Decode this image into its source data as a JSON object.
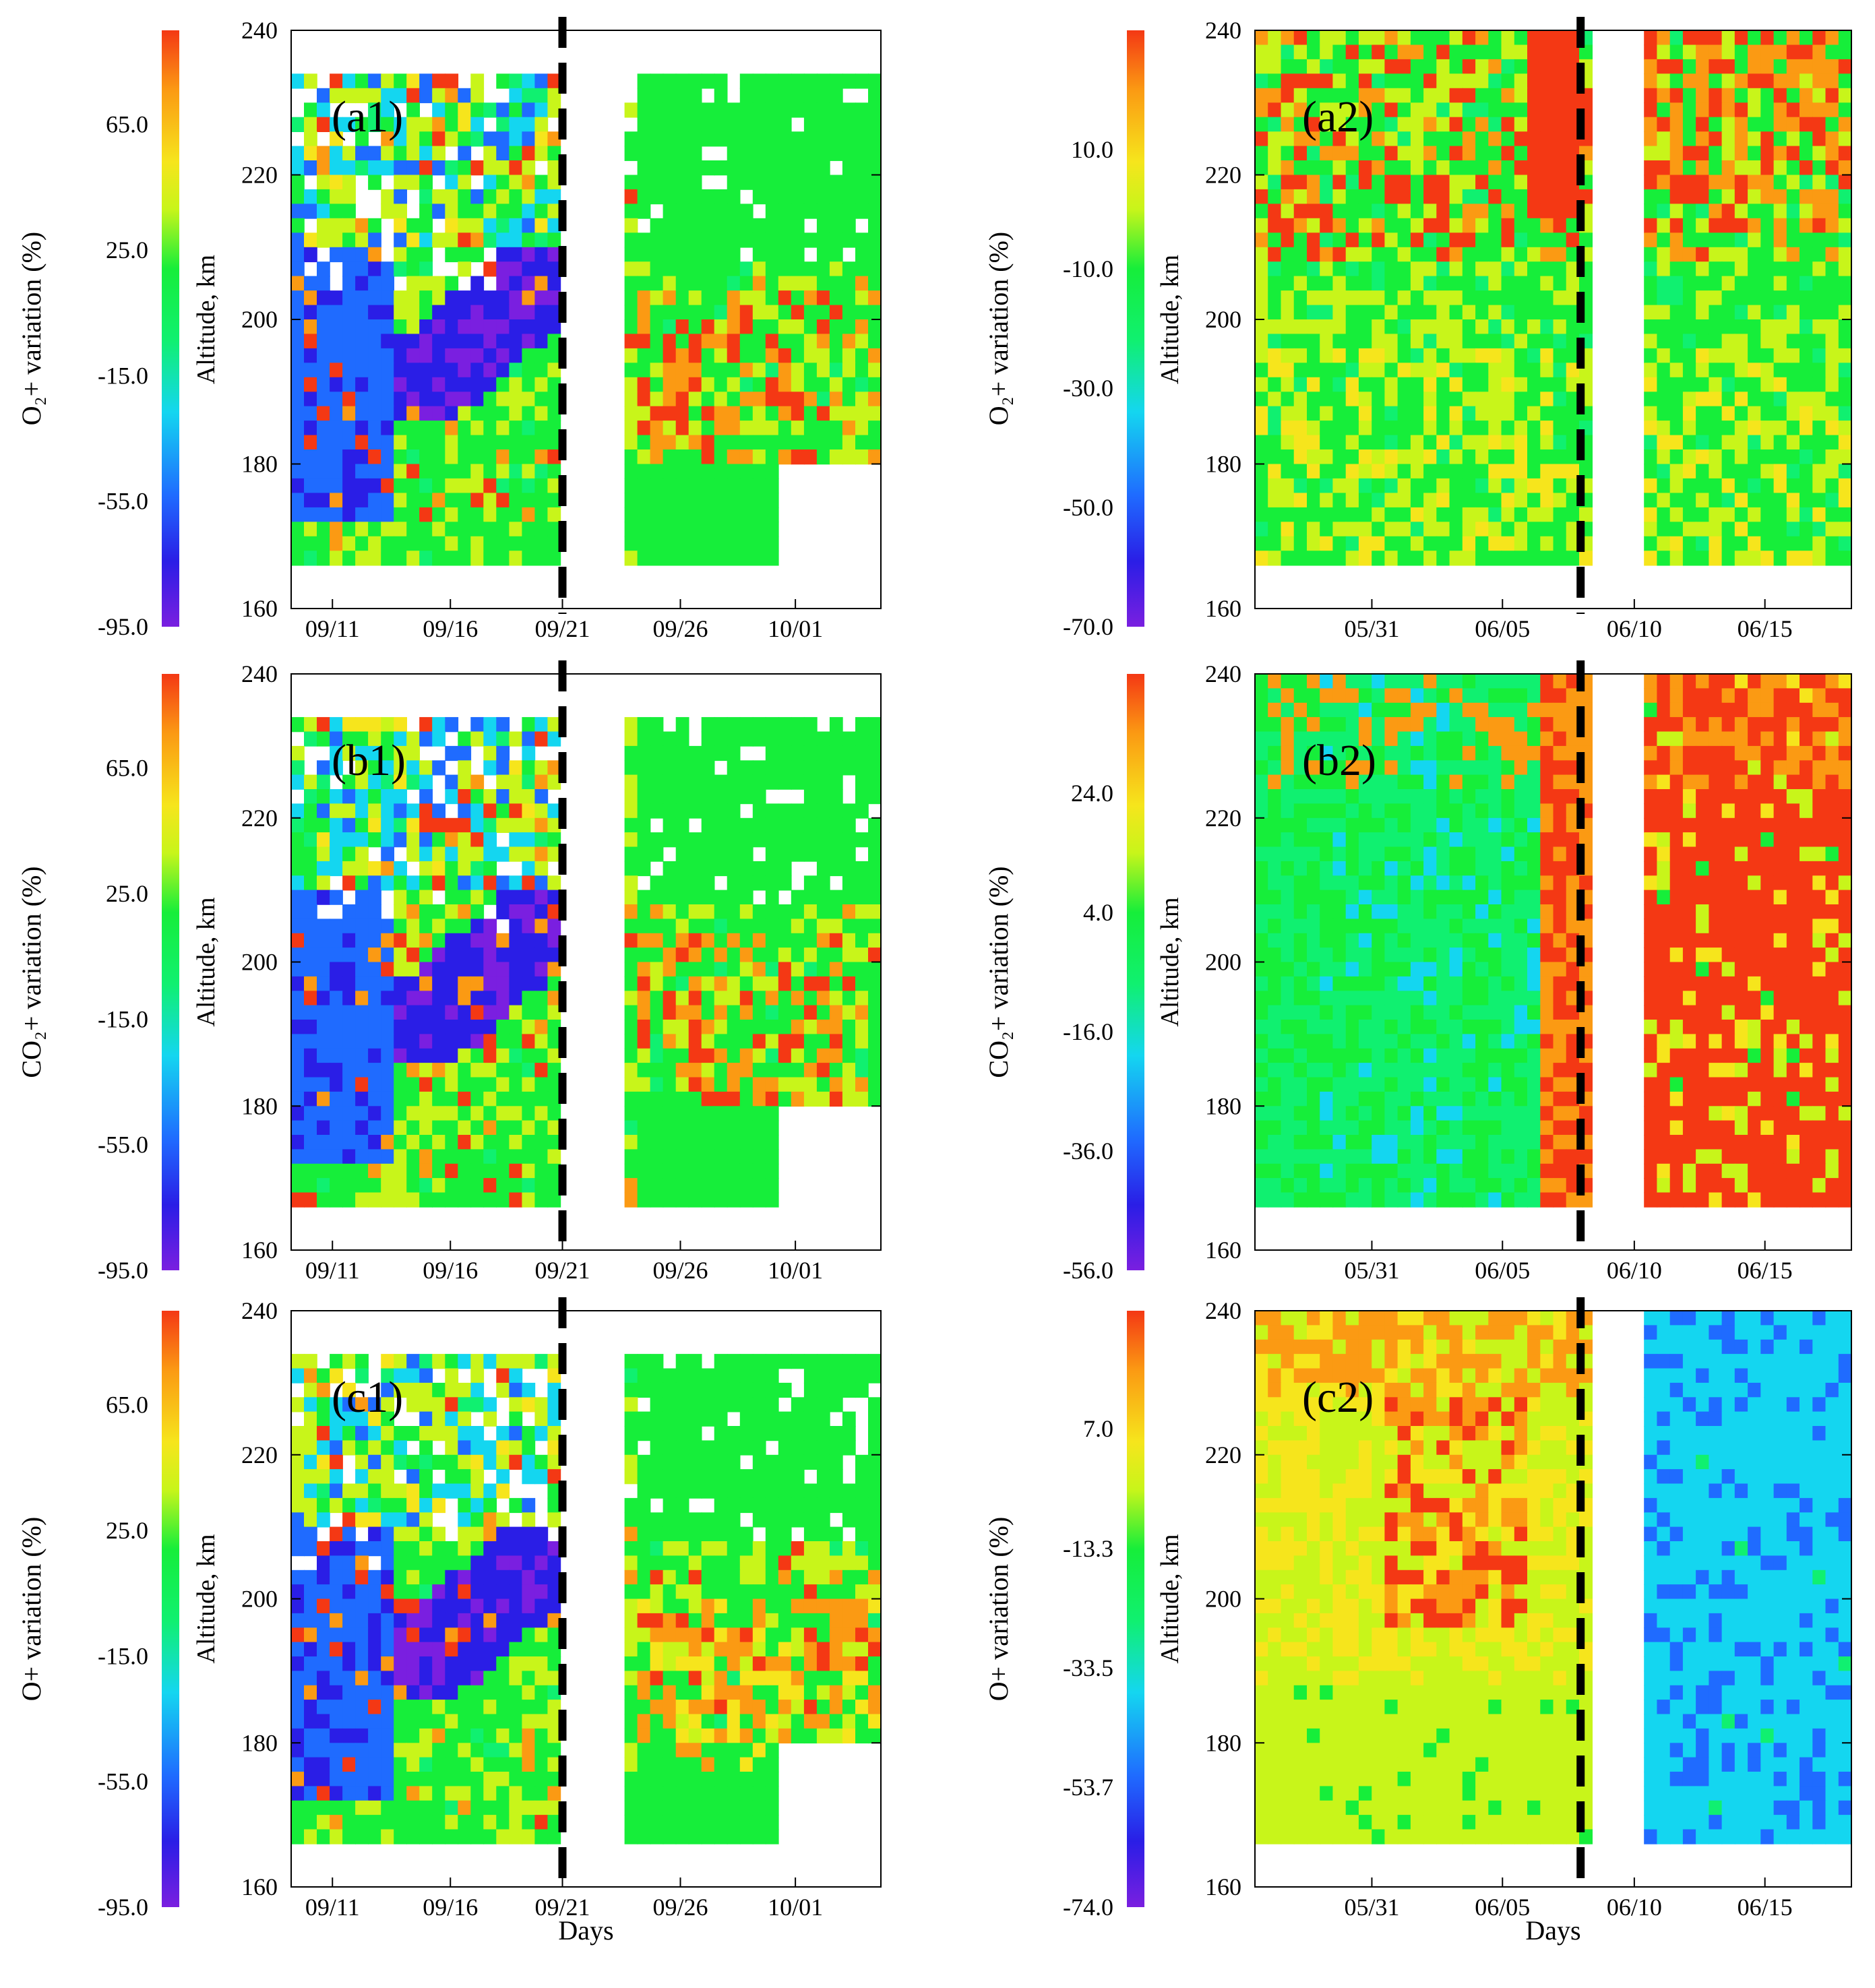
{
  "figure": {
    "description_free": true,
    "colors": {
      "scale": [
        "#7a1fe0",
        "#2a1ee6",
        "#1f6bff",
        "#14d6f0",
        "#10f070",
        "#16ee3a",
        "#c8f51a",
        "#f6e51c",
        "#fb9a13",
        "#f43814"
      ],
      "background": "#ffffff",
      "dashed_line": "#000000"
    }
  },
  "chart_data": [
    {
      "id": "a1",
      "type": "heatmap",
      "panel_label": "(a1)",
      "colorbar_label": "O₂+ variation (%)",
      "colorbar_ticks": [
        "65.0",
        "25.0",
        "-15.0",
        "-55.0",
        "-95.0"
      ],
      "colorbar_range": [
        -95.0,
        95.0
      ],
      "ylabel": "Altitude, km",
      "ylim": [
        160,
        240
      ],
      "yticks": [
        "240",
        "220",
        "200",
        "180",
        "160"
      ],
      "xticks": [
        "09/11",
        "09/16",
        "09/21",
        "09/26",
        "10/01"
      ],
      "dashed_line_at": "09/21",
      "xlabel": ""
    },
    {
      "id": "a2",
      "type": "heatmap",
      "panel_label": "(a2)",
      "colorbar_label": "O₂+ variation (%)",
      "colorbar_ticks": [
        "10.0",
        "-10.0",
        "-30.0",
        "-50.0",
        "-70.0"
      ],
      "colorbar_range": [
        -70.0,
        30.0
      ],
      "ylabel": "Altitude, km",
      "ylim": [
        160,
        240
      ],
      "yticks": [
        "240",
        "220",
        "200",
        "180",
        "160"
      ],
      "xticks": [
        "05/31",
        "06/05",
        "06/10",
        "06/15"
      ],
      "dashed_line_at": "06/08",
      "xlabel": ""
    },
    {
      "id": "b1",
      "type": "heatmap",
      "panel_label": "(b1)",
      "colorbar_label": "CO₂+ variation (%)",
      "colorbar_ticks": [
        "65.0",
        "25.0",
        "-15.0",
        "-55.0",
        "-95.0"
      ],
      "colorbar_range": [
        -95.0,
        95.0
      ],
      "ylabel": "Altitude, km",
      "ylim": [
        160,
        240
      ],
      "yticks": [
        "240",
        "220",
        "200",
        "180",
        "160"
      ],
      "xticks": [
        "09/11",
        "09/16",
        "09/21",
        "09/26",
        "10/01"
      ],
      "dashed_line_at": "09/21",
      "xlabel": ""
    },
    {
      "id": "b2",
      "type": "heatmap",
      "panel_label": "(b2)",
      "colorbar_label": "CO₂+ variation (%)",
      "colorbar_ticks": [
        "24.0",
        "4.0",
        "-16.0",
        "-36.0",
        "-56.0"
      ],
      "colorbar_range": [
        -56.0,
        44.0
      ],
      "ylabel": "Altitude, km",
      "ylim": [
        160,
        240
      ],
      "yticks": [
        "240",
        "220",
        "200",
        "180",
        "160"
      ],
      "xticks": [
        "05/31",
        "06/05",
        "06/10",
        "06/15"
      ],
      "dashed_line_at": "06/08",
      "xlabel": ""
    },
    {
      "id": "c1",
      "type": "heatmap",
      "panel_label": "(c1)",
      "colorbar_label": "O+ variation (%)",
      "colorbar_ticks": [
        "65.0",
        "25.0",
        "-15.0",
        "-55.0",
        "-95.0"
      ],
      "colorbar_range": [
        -95.0,
        95.0
      ],
      "ylabel": "Altitude, km",
      "ylim": [
        160,
        240
      ],
      "yticks": [
        "240",
        "220",
        "200",
        "180",
        "160"
      ],
      "xticks": [
        "09/11",
        "09/16",
        "09/21",
        "09/26",
        "10/01"
      ],
      "dashed_line_at": "09/21",
      "xlabel": "Days"
    },
    {
      "id": "c2",
      "type": "heatmap",
      "panel_label": "(c2)",
      "colorbar_label": "O+ variation (%)",
      "colorbar_ticks": [
        "7.0",
        "-13.3",
        "-33.5",
        "-53.7",
        "-74.0"
      ],
      "colorbar_range": [
        -74.0,
        27.0
      ],
      "ylabel": "Altitude, km",
      "ylim": [
        160,
        240
      ],
      "yticks": [
        "240",
        "220",
        "200",
        "180",
        "160"
      ],
      "xticks": [
        "05/31",
        "06/05",
        "06/10",
        "06/15"
      ],
      "dashed_line_at": "06/08",
      "xlabel": "Days"
    }
  ]
}
